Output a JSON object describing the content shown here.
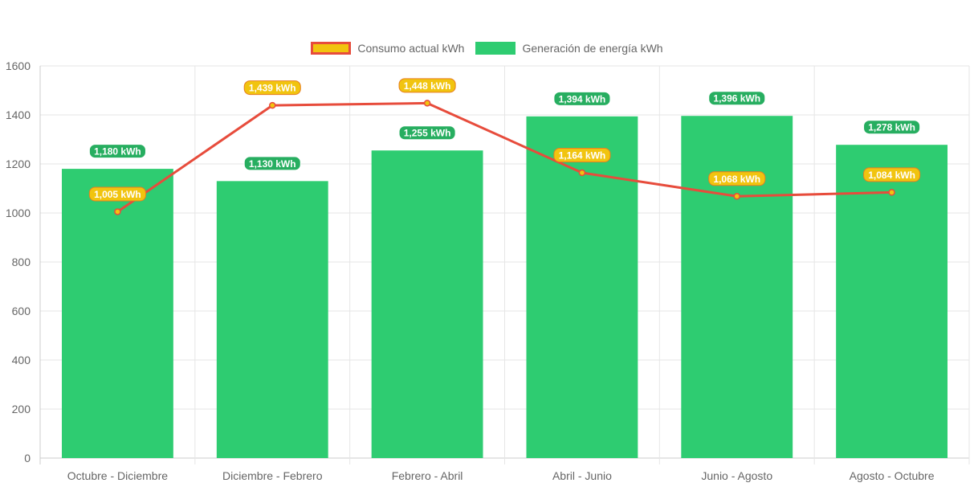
{
  "chart_data": {
    "type": "bar",
    "categories": [
      "Octubre - Diciembre",
      "Diciembre - Febrero",
      "Febrero - Abril",
      "Abril - Junio",
      "Junio - Agosto",
      "Agosto - Octubre"
    ],
    "series": [
      {
        "name": "Consumo actual kWh",
        "type": "line",
        "color": "#e74c3c",
        "fill": "#f1c40f",
        "values": [
          1005,
          1439,
          1448,
          1164,
          1068,
          1084
        ],
        "labels": [
          "1,005 kWh",
          "1,439 kWh",
          "1,448 kWh",
          "1,164 kWh",
          "1,068 kWh",
          "1,084 kWh"
        ]
      },
      {
        "name": "Generación de energía kWh",
        "type": "bar",
        "color": "#2ecc71",
        "values": [
          1180,
          1130,
          1255,
          1394,
          1396,
          1278
        ],
        "labels": [
          "1,180 kWh",
          "1,130 kWh",
          "1,255 kWh",
          "1,394 kWh",
          "1,396 kWh",
          "1,278 kWh"
        ]
      }
    ],
    "ylim": [
      0,
      1600
    ],
    "yticks": [
      "0",
      "200",
      "400",
      "600",
      "800",
      "1000",
      "1200",
      "1400",
      "1600"
    ],
    "grid": true,
    "legend_position": "top"
  }
}
